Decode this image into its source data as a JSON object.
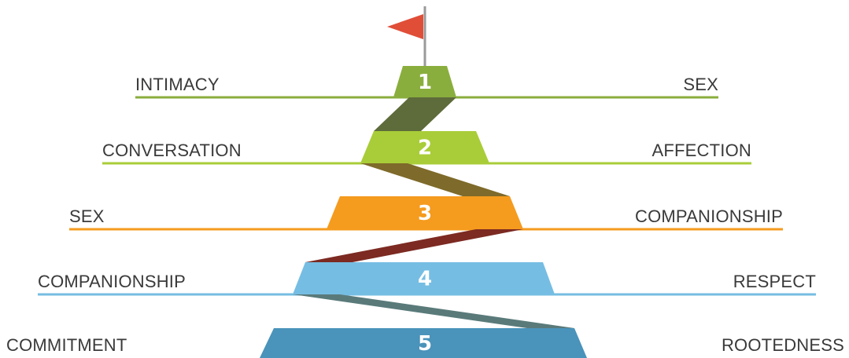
{
  "levels": [
    {
      "number": "1",
      "left_label": "INTIMACY",
      "right_label": "SEX",
      "color": "#8aae3d"
    },
    {
      "number": "2",
      "left_label": "CONVERSATION",
      "right_label": "AFFECTION",
      "color": "#a9cd38"
    },
    {
      "number": "3",
      "left_label": "SEX",
      "right_label": "COMPANIONSHIP",
      "color": "#f59b1e"
    },
    {
      "number": "4",
      "left_label": "COMPANIONSHIP",
      "right_label": "RESPECT",
      "color": "#76bde3"
    },
    {
      "number": "5",
      "left_label": "COMMITMENT",
      "right_label": "ROOTEDNESS",
      "color": "#4a93ba"
    }
  ],
  "connectors": [
    {
      "color": "#5e6b3a"
    },
    {
      "color": "#7e6a2a"
    },
    {
      "color": "#7c2a22"
    },
    {
      "color": "#5a7a7a"
    }
  ],
  "flag": {
    "color": "#e04e38",
    "pole_color": "#9a9a9a"
  }
}
